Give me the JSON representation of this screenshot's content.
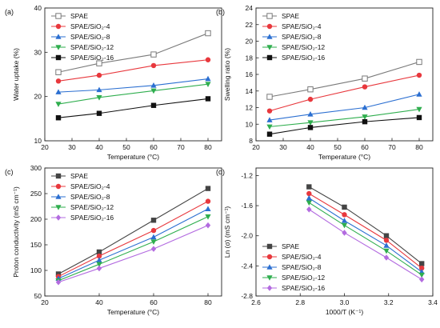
{
  "chart_data": [
    {
      "panel_label": "(a)",
      "type": "line",
      "xlabel": "Temperature (°C)",
      "ylabel": "Water uptake (%)",
      "xlim": [
        20,
        85
      ],
      "ylim": [
        10,
        40
      ],
      "xticks": [
        "20",
        "30",
        "40",
        "50",
        "60",
        "70",
        "80"
      ],
      "yticks": [
        "10",
        "20",
        "30",
        "40"
      ],
      "x": [
        25,
        40,
        60,
        80
      ],
      "legend_position": "top-left",
      "series": [
        {
          "name": "SPAE",
          "color": "#7a7a7a",
          "marker": "open-square",
          "values": [
            25.5,
            27.5,
            29.5,
            34.3
          ]
        },
        {
          "name": "SPAE/SiO₂-4",
          "color": "#e8383d",
          "marker": "circle",
          "values": [
            23.5,
            24.8,
            27.0,
            28.3
          ]
        },
        {
          "name": "SPAE/SiO₂-8",
          "color": "#2b6fd1",
          "marker": "triangle-up",
          "values": [
            21.0,
            21.5,
            22.5,
            24.0
          ]
        },
        {
          "name": "SPAE/SiO₂-12",
          "color": "#2fae4e",
          "marker": "triangle-down",
          "values": [
            18.3,
            19.8,
            21.3,
            22.8
          ]
        },
        {
          "name": "SPAE/SiO₂-16",
          "color": "#111111",
          "marker": "square",
          "values": [
            15.2,
            16.2,
            18.0,
            19.5
          ]
        }
      ]
    },
    {
      "panel_label": "(b)",
      "type": "line",
      "xlabel": "Temperature (°C)",
      "ylabel": "Swelling ratio (%)",
      "xlim": [
        20,
        85
      ],
      "ylim": [
        8,
        24
      ],
      "xticks": [
        "20",
        "30",
        "40",
        "50",
        "60",
        "70",
        "80"
      ],
      "yticks": [
        "8",
        "10",
        "12",
        "14",
        "16",
        "18",
        "20",
        "22",
        "24"
      ],
      "x": [
        25,
        40,
        60,
        80
      ],
      "legend_position": "top-left",
      "series": [
        {
          "name": "SPAE",
          "color": "#7a7a7a",
          "marker": "open-square",
          "values": [
            13.3,
            14.2,
            15.5,
            17.5
          ]
        },
        {
          "name": "SPAE/SiO₂-4",
          "color": "#e8383d",
          "marker": "circle",
          "values": [
            11.6,
            13.0,
            14.5,
            15.9
          ]
        },
        {
          "name": "SPAE/SiO₂-8",
          "color": "#2b6fd1",
          "marker": "triangle-up",
          "values": [
            10.5,
            11.2,
            12.0,
            13.6
          ]
        },
        {
          "name": "SPAE/SiO₂-12",
          "color": "#2fae4e",
          "marker": "triangle-down",
          "values": [
            9.7,
            10.2,
            10.9,
            11.8
          ]
        },
        {
          "name": "SPAE/SiO₂-16",
          "color": "#111111",
          "marker": "square",
          "values": [
            8.8,
            9.6,
            10.3,
            10.8
          ]
        }
      ]
    },
    {
      "panel_label": "(c)",
      "type": "line",
      "xlabel": "Temperature (°C)",
      "ylabel": "Proton conductivity (mS cm⁻¹)",
      "xlim": [
        20,
        85
      ],
      "ylim": [
        50,
        300
      ],
      "xticks": [
        "20",
        "40",
        "60",
        "80"
      ],
      "yticks": [
        "50",
        "100",
        "150",
        "200",
        "250",
        "300"
      ],
      "x": [
        25,
        40,
        60,
        80
      ],
      "legend_position": "top-left",
      "series": [
        {
          "name": "SPAE",
          "color": "#444444",
          "marker": "square",
          "values": [
            93,
            136,
            198,
            260
          ]
        },
        {
          "name": "SPAE/SiO₂-4",
          "color": "#e8383d",
          "marker": "circle",
          "values": [
            88,
            128,
            178,
            235
          ]
        },
        {
          "name": "SPAE/SiO₂-8",
          "color": "#2b6fd1",
          "marker": "triangle-up",
          "values": [
            84,
            120,
            165,
            220
          ]
        },
        {
          "name": "SPAE/SiO₂-12",
          "color": "#2fae4e",
          "marker": "triangle-down",
          "values": [
            80,
            112,
            156,
            205
          ]
        },
        {
          "name": "SPAE/SiO₂-16",
          "color": "#b36be0",
          "marker": "diamond",
          "values": [
            77,
            104,
            142,
            188
          ]
        }
      ]
    },
    {
      "panel_label": "(d)",
      "type": "line",
      "xlabel": "1000/T (K⁻¹)",
      "ylabel": "Ln (σ) (mS cm⁻¹)",
      "xlim": [
        2.6,
        3.4
      ],
      "ylim": [
        -2.8,
        -1.1
      ],
      "xticks": [
        "2.6",
        "2.8",
        "3.0",
        "3.2",
        "3.4"
      ],
      "yticks": [
        "-2.8",
        "-2.4",
        "-2.0",
        "-1.6",
        "-1.2"
      ],
      "x": [
        2.84,
        3.0,
        3.19,
        3.35
      ],
      "legend_position": "bottom-left",
      "series": [
        {
          "name": "SPAE",
          "color": "#444444",
          "marker": "square",
          "values": [
            -1.35,
            -1.62,
            -2.0,
            -2.37
          ]
        },
        {
          "name": "SPAE/SiO₂-4",
          "color": "#e8383d",
          "marker": "circle",
          "values": [
            -1.44,
            -1.72,
            -2.06,
            -2.43
          ]
        },
        {
          "name": "SPAE/SiO₂-8",
          "color": "#2b6fd1",
          "marker": "triangle-up",
          "values": [
            -1.5,
            -1.8,
            -2.13,
            -2.48
          ]
        },
        {
          "name": "SPAE/SiO₂-12",
          "color": "#2fae4e",
          "marker": "triangle-down",
          "values": [
            -1.56,
            -1.86,
            -2.2,
            -2.52
          ]
        },
        {
          "name": "SPAE/SiO₂-16",
          "color": "#b36be0",
          "marker": "diamond",
          "values": [
            -1.65,
            -1.96,
            -2.29,
            -2.58
          ]
        }
      ]
    }
  ]
}
